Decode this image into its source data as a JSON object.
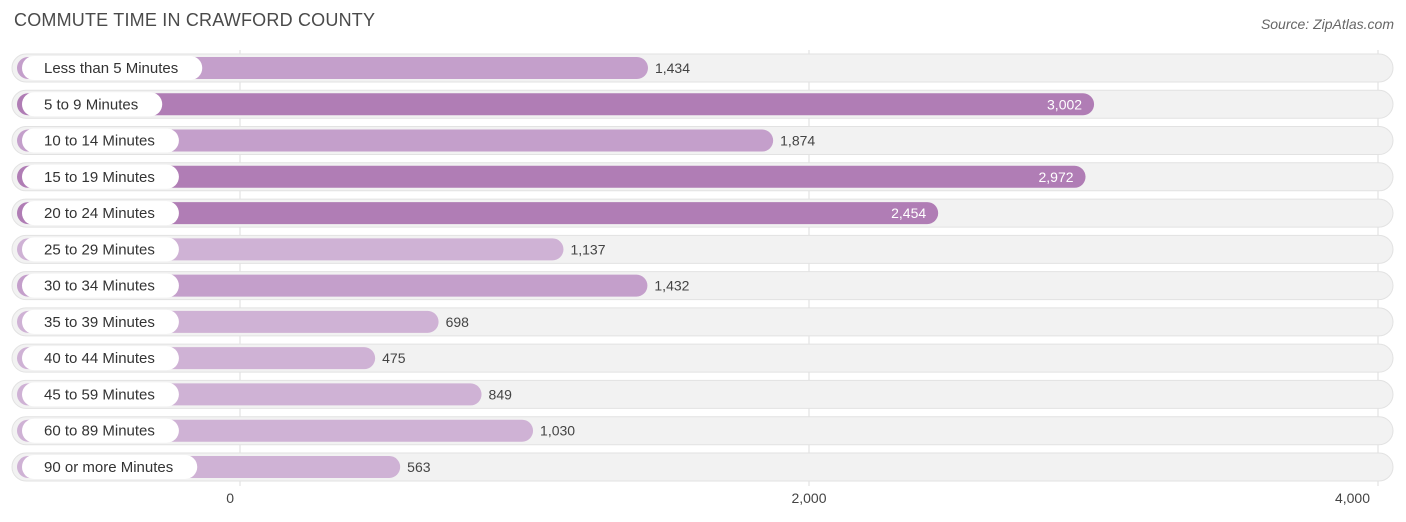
{
  "chart_data": {
    "type": "bar",
    "orientation": "horizontal",
    "title": "COMMUTE TIME IN CRAWFORD COUNTY",
    "source": "Source: ZipAtlas.com",
    "categories": [
      "Less than 5 Minutes",
      "5 to 9 Minutes",
      "10 to 14 Minutes",
      "15 to 19 Minutes",
      "20 to 24 Minutes",
      "25 to 29 Minutes",
      "30 to 34 Minutes",
      "35 to 39 Minutes",
      "40 to 44 Minutes",
      "45 to 59 Minutes",
      "60 to 89 Minutes",
      "90 or more Minutes"
    ],
    "values": [
      1434,
      3002,
      1874,
      2972,
      2454,
      1137,
      1432,
      698,
      475,
      849,
      1030,
      563
    ],
    "value_labels": [
      "1,434",
      "3,002",
      "1,874",
      "2,972",
      "2,454",
      "1,137",
      "1,432",
      "698",
      "475",
      "849",
      "1,030",
      "563"
    ],
    "xlim": [
      0,
      4000
    ],
    "xticks": [
      0,
      2000,
      4000
    ],
    "xtick_labels": [
      "0",
      "2,000",
      "4,000"
    ],
    "xlabel": "",
    "ylabel": "",
    "grid": true,
    "colors": {
      "bar_strong": "#b07db5",
      "bar_light": "#cfb2d5",
      "track": "#f0f0f0",
      "track_border": "#e2e2e2",
      "grid": "#dddddd"
    }
  }
}
